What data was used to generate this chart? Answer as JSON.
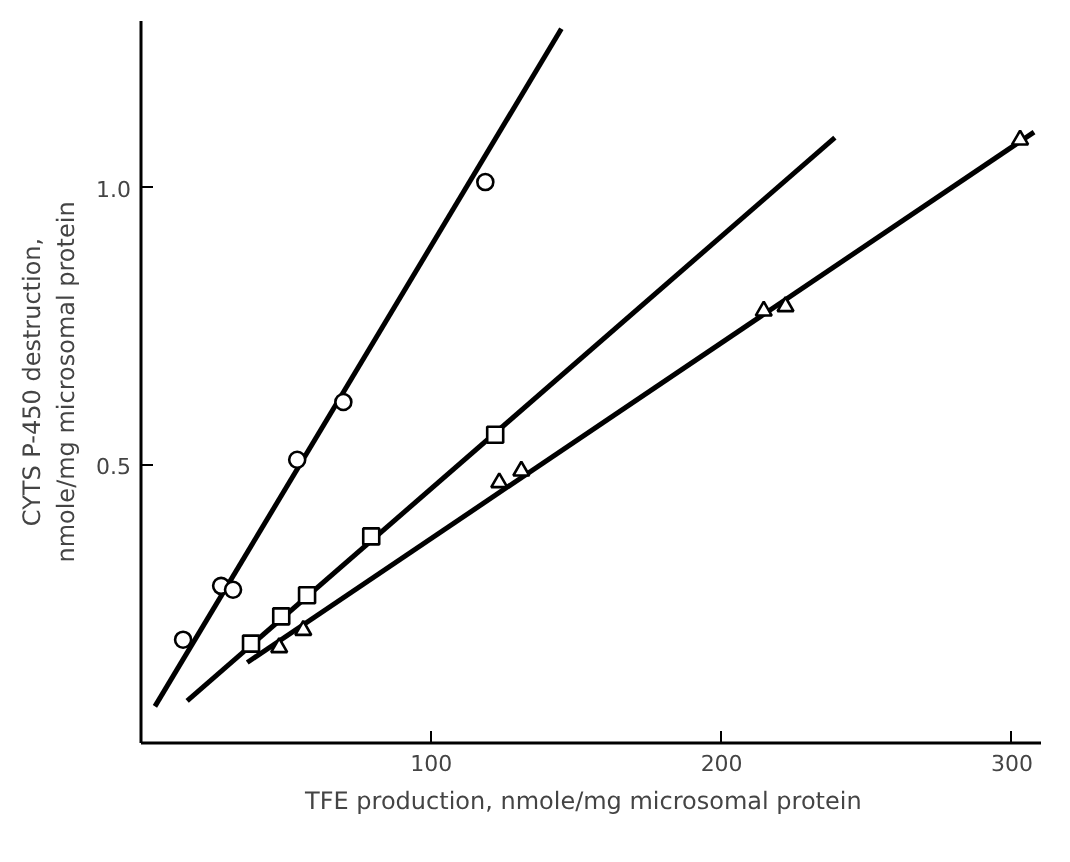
{
  "chart_data": {
    "type": "scatter",
    "xlabel": "TFE production,   nmole/mg microsomal protein",
    "ylabel": "CYTS P-450 destruction,\nnmole/mg microsomal protein",
    "xlim": [
      0,
      310
    ],
    "ylim": [
      0,
      1.3
    ],
    "xticks": [
      100,
      200,
      300
    ],
    "yticks": [
      0.5,
      {
        "value": 1.0,
        "label": "1.0"
      }
    ],
    "grid": false,
    "series": [
      {
        "marker": "circle",
        "color": "#000000",
        "x": [
          14.5,
          27.6,
          31.7,
          53.8,
          69.7,
          118.6
        ],
        "values": [
          0.186,
          0.283,
          0.276,
          0.51,
          0.614,
          1.01
        ]
      },
      {
        "marker": "square",
        "color": "#000000",
        "x": [
          37.9,
          48.3,
          57.2,
          79.3,
          122
        ],
        "values": [
          0.179,
          0.228,
          0.266,
          0.372,
          0.555
        ]
      },
      {
        "marker": "triangle",
        "color": "#000000",
        "x": [
          47.6,
          55.9,
          123.4,
          131,
          214.5,
          222,
          302.8
        ],
        "values": [
          0.172,
          0.203,
          0.469,
          0.49,
          0.778,
          0.786,
          1.086
        ]
      },
      {
        "type": "line",
        "marker": "none",
        "line_style": "solid",
        "color": "#000000",
        "x": [
          4.8,
          144.8
        ],
        "values": [
          0.066,
          1.286
        ]
      },
      {
        "type": "line",
        "marker": "none",
        "line_style": "solid",
        "color": "#000000",
        "x": [
          15.9,
          239
        ],
        "values": [
          0.076,
          1.09
        ]
      },
      {
        "type": "line",
        "marker": "none",
        "line_style": "solid",
        "color": "#000000",
        "x": [
          36.6,
          307.6
        ],
        "values": [
          0.145,
          1.1
        ]
      }
    ]
  }
}
